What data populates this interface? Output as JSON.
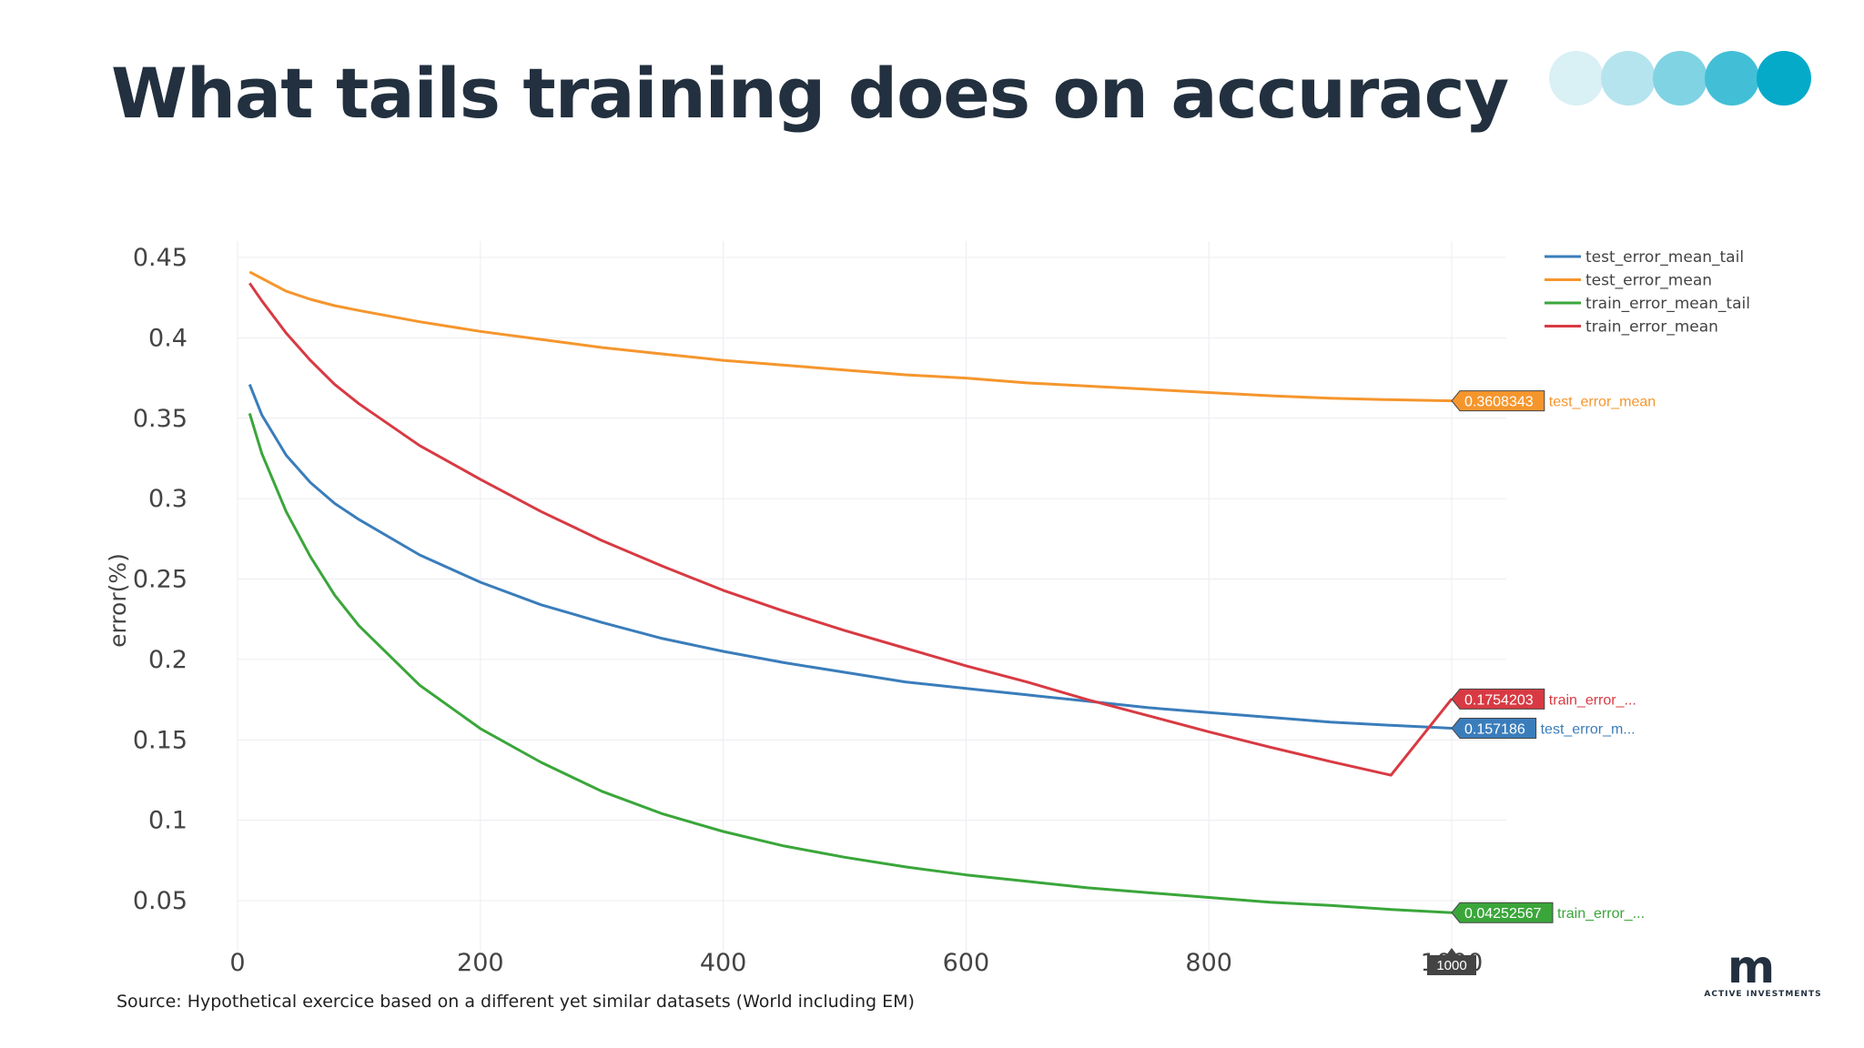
{
  "slide": {
    "title": "What tails training does on accuracy",
    "source": "Source: Hypothetical exercice based on a different yet similar datasets (World including EM)",
    "logo_text": "ACTIVE INVESTMENTS",
    "logo_icon": "m-logo",
    "dot_colors": [
      "#d9f0f5",
      "#b5e4ee",
      "#7fd3e3",
      "#42bfd6",
      "#06aac9"
    ]
  },
  "chart_data": {
    "type": "line",
    "title": "",
    "xlabel": "",
    "ylabel": "error(%)",
    "xlim": [
      0,
      1000
    ],
    "ylim": [
      0.03,
      0.46
    ],
    "xticks": [
      0,
      200,
      400,
      600,
      800,
      1000
    ],
    "yticks": [
      0.05,
      0.1,
      0.15,
      0.2,
      0.25,
      0.3,
      0.35,
      0.4,
      0.45
    ],
    "grid": true,
    "legend_position": "top-right",
    "x": [
      10,
      20,
      40,
      60,
      80,
      100,
      150,
      200,
      250,
      300,
      350,
      400,
      450,
      500,
      550,
      600,
      650,
      700,
      750,
      800,
      850,
      900,
      950,
      1000
    ],
    "series": [
      {
        "name": "test_error_mean_tail",
        "color": "#3a7dbb",
        "values": [
          0.371,
          0.352,
          0.327,
          0.31,
          0.297,
          0.287,
          0.265,
          0.248,
          0.234,
          0.223,
          0.213,
          0.205,
          0.198,
          0.192,
          0.186,
          0.182,
          0.178,
          0.174,
          0.17,
          0.167,
          0.164,
          0.161,
          0.159,
          0.157186
        ],
        "end_label": "0.157186",
        "end_tag": "test_error_m..."
      },
      {
        "name": "test_error_mean",
        "color": "#f5962d",
        "values": [
          0.441,
          0.437,
          0.429,
          0.424,
          0.42,
          0.417,
          0.41,
          0.404,
          0.399,
          0.394,
          0.39,
          0.386,
          0.383,
          0.38,
          0.377,
          0.375,
          0.372,
          0.37,
          0.368,
          0.366,
          0.364,
          0.3625,
          0.3615,
          0.3608343
        ],
        "end_label": "0.3608343",
        "end_tag": "test_error_mean"
      },
      {
        "name": "train_error_mean_tail",
        "color": "#3aa63a",
        "values": [
          0.353,
          0.328,
          0.292,
          0.264,
          0.24,
          0.221,
          0.184,
          0.157,
          0.136,
          0.118,
          0.104,
          0.093,
          0.084,
          0.077,
          0.071,
          0.066,
          0.062,
          0.058,
          0.055,
          0.052,
          0.049,
          0.047,
          0.0445,
          0.04252567
        ],
        "end_label": "0.04252567",
        "end_tag": "train_error_..."
      },
      {
        "name": "train_error_mean",
        "color": "#d83a43",
        "values": [
          0.434,
          0.423,
          0.403,
          0.386,
          0.371,
          0.359,
          0.333,
          0.312,
          0.292,
          0.274,
          0.258,
          0.243,
          0.23,
          0.218,
          0.207,
          0.196,
          0.186,
          0.175,
          0.165,
          0.155,
          0.1455,
          0.1365,
          0.128,
          0.1754203
        ],
        "end_label": "0.1754203",
        "end_tag": "train_error_..."
      }
    ],
    "hover_x_label": "1000"
  }
}
